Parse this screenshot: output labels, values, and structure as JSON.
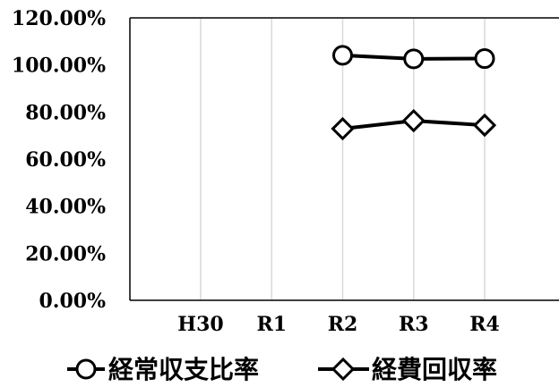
{
  "chart_data": {
    "type": "line",
    "categories": [
      "H30",
      "R1",
      "R2",
      "R3",
      "R4"
    ],
    "series": [
      {
        "name": "経常収支比率",
        "marker": "circle-icon",
        "values": [
          null,
          null,
          104.1,
          102.6,
          102.7
        ]
      },
      {
        "name": "経費回収率",
        "marker": "diamond-icon",
        "values": [
          null,
          null,
          72.9,
          76.3,
          74.4
        ]
      }
    ],
    "ylim": [
      0,
      120
    ],
    "ystep": 20,
    "y_tick_labels": [
      "0.00%",
      "20.00%",
      "40.00%",
      "60.00%",
      "80.00%",
      "100.00%",
      "120.00%"
    ],
    "grid": {
      "vertical": true,
      "horizontal": false
    },
    "legend": "bottom",
    "colors": {
      "line": "#000000",
      "marker_fill": "#ffffff",
      "grid": "#d9d9d9",
      "axis": "#000000"
    }
  }
}
